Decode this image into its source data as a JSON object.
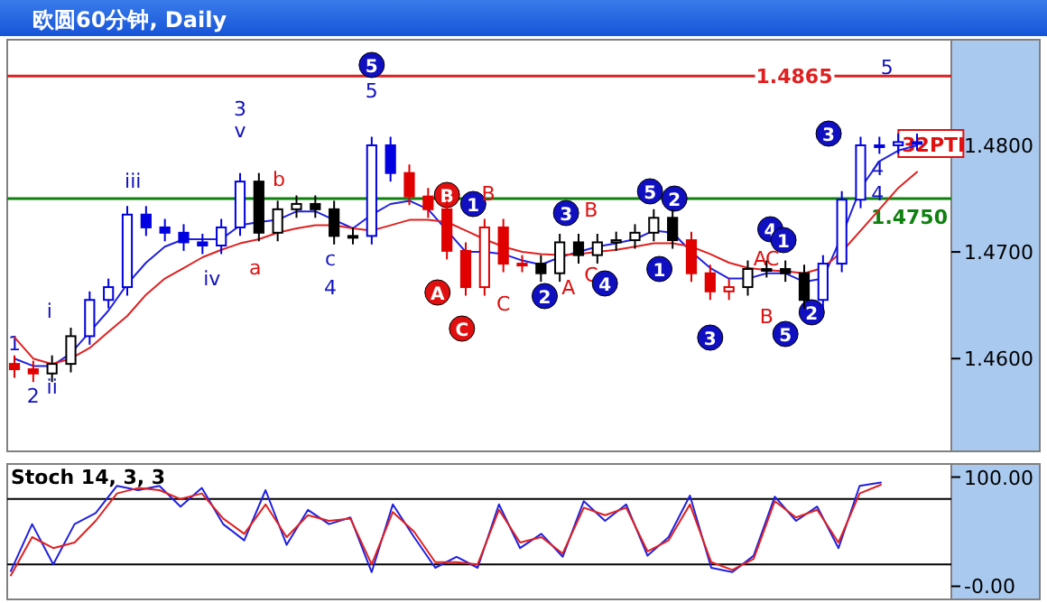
{
  "chart_data": [
    {
      "type": "candlestick",
      "title": "欧圆60分钟, Daily",
      "tick_labels": "y",
      "categories": [
        null,
        null,
        null,
        null,
        null,
        null,
        null,
        null,
        null,
        null,
        null,
        null,
        null,
        null,
        null,
        null,
        null,
        null,
        null,
        null,
        null,
        null,
        null,
        null,
        null,
        null,
        null,
        null,
        null,
        null,
        null,
        null,
        null,
        null,
        null,
        null,
        null,
        null,
        null,
        null,
        null,
        null,
        null,
        null,
        null,
        null,
        null,
        null,
        null
      ],
      "ohlc": [
        [
          1.4595,
          1.4603,
          1.4582,
          1.459
        ],
        [
          1.459,
          1.4598,
          1.4578,
          1.4586
        ],
        [
          1.4586,
          1.4603,
          1.4578,
          1.4595
        ],
        [
          1.4595,
          1.4629,
          1.4587,
          1.4621
        ],
        [
          1.4621,
          1.4663,
          1.4613,
          1.4655
        ],
        [
          1.4655,
          1.4675,
          1.4647,
          1.4667
        ],
        [
          1.4667,
          1.4743,
          1.4659,
          1.4735
        ],
        [
          1.4735,
          1.4743,
          1.4715,
          1.4723
        ],
        [
          1.4723,
          1.4731,
          1.471,
          1.4718
        ],
        [
          1.4718,
          1.4726,
          1.4701,
          1.4709
        ],
        [
          1.4709,
          1.4717,
          1.4698,
          1.4706
        ],
        [
          1.4706,
          1.4731,
          1.4698,
          1.4723
        ],
        [
          1.4723,
          1.4774,
          1.4715,
          1.4766
        ],
        [
          1.4766,
          1.4774,
          1.471,
          1.4718
        ],
        [
          1.4718,
          1.4748,
          1.471,
          1.474
        ],
        [
          1.474,
          1.4753,
          1.4732,
          1.4745
        ],
        [
          1.4745,
          1.4753,
          1.4732,
          1.474
        ],
        [
          1.474,
          1.4748,
          1.4707,
          1.4715
        ],
        [
          1.4715,
          1.4723,
          1.4707,
          1.4715
        ],
        [
          1.4715,
          1.4808,
          1.4707,
          1.48
        ],
        [
          1.48,
          1.4808,
          1.4766,
          1.4774
        ],
        [
          1.4774,
          1.4782,
          1.4744,
          1.4752
        ],
        [
          1.4752,
          1.476,
          1.4732,
          1.474
        ],
        [
          1.474,
          1.4748,
          1.4693,
          1.4701
        ],
        [
          1.4701,
          1.4709,
          1.4659,
          1.4667
        ],
        [
          1.4667,
          1.4731,
          1.4659,
          1.4723
        ],
        [
          1.4723,
          1.4731,
          1.4681,
          1.4689
        ],
        [
          1.4689,
          1.4697,
          1.4681,
          1.4689
        ],
        [
          1.4689,
          1.4697,
          1.4672,
          1.468
        ],
        [
          1.468,
          1.4717,
          1.4672,
          1.4709
        ],
        [
          1.4709,
          1.4717,
          1.4689,
          1.4697
        ],
        [
          1.4697,
          1.4717,
          1.4689,
          1.4709
        ],
        [
          1.4709,
          1.4719,
          1.4701,
          1.4711
        ],
        [
          1.4711,
          1.4726,
          1.4703,
          1.4718
        ],
        [
          1.4718,
          1.474,
          1.471,
          1.4732
        ],
        [
          1.4732,
          1.474,
          1.4703,
          1.4711
        ],
        [
          1.4711,
          1.4719,
          1.4672,
          1.468
        ],
        [
          1.468,
          1.4688,
          1.4655,
          1.4663
        ],
        [
          1.4663,
          1.4675,
          1.4655,
          1.4667
        ],
        [
          1.4667,
          1.4692,
          1.4659,
          1.4684
        ],
        [
          1.4684,
          1.4692,
          1.4676,
          1.4684
        ],
        [
          1.4684,
          1.4692,
          1.4672,
          1.468
        ],
        [
          1.468,
          1.4688,
          1.4647,
          1.4655
        ],
        [
          1.4655,
          1.4697,
          1.4647,
          1.4689
        ],
        [
          1.4689,
          1.4757,
          1.4681,
          1.4749
        ],
        [
          1.4749,
          1.4808,
          1.4741,
          1.48
        ],
        [
          1.48,
          1.4808,
          1.4792,
          1.48
        ],
        [
          1.48,
          1.4811,
          1.4792,
          1.4803
        ],
        [
          1.4803,
          1.4811,
          1.4795,
          1.4803
        ]
      ],
      "colors": [
        "#e00000",
        "#e00000",
        "#000000",
        "#000000",
        "#0000e0",
        "#0000e0",
        "#0000e0",
        "#0000e0",
        "#0000e0",
        "#0000e0",
        "#0000e0",
        "#0000e0",
        "#0000e0",
        "#000000",
        "#000000",
        "#000000",
        "#000000",
        "#000000",
        "#000000",
        "#0000e0",
        "#0000e0",
        "#e00000",
        "#e00000",
        "#e00000",
        "#e00000",
        "#e00000",
        "#e00000",
        "#e00000",
        "#000000",
        "#000000",
        "#000000",
        "#000000",
        "#000000",
        "#000000",
        "#000000",
        "#000000",
        "#e00000",
        "#e00000",
        "#e00000",
        "#000000",
        "#000000",
        "#000000",
        "#000000",
        "#0000e0",
        "#0000e0",
        "#0000e0",
        "#0000e0",
        "#0000e0",
        "#0000e0"
      ],
      "series": [
        {
          "type": "line",
          "color": "#2020e0",
          "values": [
            1.46,
            1.4593,
            1.4593,
            1.4605,
            1.4625,
            1.4645,
            1.467,
            1.469,
            1.4705,
            1.4712,
            1.4712,
            1.4712,
            1.4725,
            1.4728,
            1.473,
            1.4738,
            1.4738,
            1.473,
            1.4722,
            1.4735,
            1.4745,
            1.4748,
            1.474,
            1.472,
            1.47,
            1.47,
            1.4698,
            1.4692,
            1.4688,
            1.4695,
            1.47,
            1.4705,
            1.4708,
            1.4712,
            1.472,
            1.4718,
            1.47,
            1.4685,
            1.4675,
            1.4675,
            1.468,
            1.468,
            1.4672,
            1.4675,
            1.4715,
            1.476,
            1.4785,
            1.4795,
            1.48
          ]
        },
        {
          "type": "line",
          "color": "#e02020",
          "values": [
            1.462,
            1.46,
            1.4595,
            1.46,
            1.461,
            1.4625,
            1.464,
            1.466,
            1.4675,
            1.4685,
            1.4695,
            1.4702,
            1.4708,
            1.4712,
            1.4718,
            1.4722,
            1.4725,
            1.4725,
            1.4722,
            1.472,
            1.4725,
            1.473,
            1.473,
            1.4728,
            1.472,
            1.4712,
            1.4705,
            1.47,
            1.4698,
            1.4697,
            1.4698,
            1.47,
            1.4702,
            1.4705,
            1.4708,
            1.4708,
            1.4705,
            1.4698,
            1.469,
            1.4685,
            1.4683,
            1.4682,
            1.468,
            1.4685,
            1.47,
            1.472,
            1.474,
            1.476,
            1.4775
          ]
        }
      ],
      "ylim": [
        1.4513,
        1.4899
      ],
      "yticks": [
        {
          "value": 1.46,
          "label": "1.4600"
        },
        {
          "value": 1.47,
          "label": "1.4700"
        },
        {
          "value": 1.48,
          "label": "1.4800"
        }
      ],
      "ref_lines": [
        {
          "axis": "y",
          "value": 1.4865,
          "label": "1.4865",
          "color": "#e02020"
        },
        {
          "axis": "y",
          "value": 1.475,
          "label": "1.4750",
          "color": "#108010"
        }
      ],
      "annotations": [
        "1",
        "2",
        "i",
        "ii",
        "iii",
        "iv",
        "3",
        "v",
        "a",
        "b",
        "c",
        "4",
        "5",
        "5",
        "B",
        "A",
        "1",
        "B",
        "C",
        "C",
        "2",
        "3",
        "A",
        "B",
        "C",
        "4",
        "5",
        "2",
        "1",
        "3",
        "4",
        "A",
        "C",
        "B",
        "1",
        "2",
        "5",
        "3",
        "5",
        "4",
        "4",
        "32PTI"
      ]
    },
    {
      "type": "line",
      "title": "Stoch 14, 3, 3",
      "tick_labels": "y",
      "categories": [
        null,
        null,
        null,
        null,
        null,
        null,
        null,
        null,
        null,
        null,
        null,
        null,
        null,
        null,
        null,
        null,
        null,
        null,
        null,
        null,
        null,
        null,
        null,
        null,
        null,
        null,
        null,
        null,
        null,
        null,
        null,
        null,
        null,
        null,
        null,
        null,
        null,
        null,
        null,
        null,
        null,
        null
      ],
      "series": [
        {
          "color": "#2020e0",
          "values": [
            14,
            57,
            20,
            57,
            67,
            92,
            88,
            92,
            73,
            90,
            57,
            42,
            88,
            38,
            70,
            57,
            63,
            13,
            75,
            45,
            17,
            27,
            17,
            75,
            35,
            48,
            27,
            78,
            60,
            75,
            28,
            45,
            83,
            17,
            13,
            28,
            82,
            60,
            73,
            35,
            92,
            95
          ]
        },
        {
          "color": "#e02020",
          "values": [
            10,
            45,
            35,
            40,
            60,
            85,
            90,
            88,
            80,
            85,
            62,
            48,
            75,
            45,
            65,
            60,
            62,
            20,
            68,
            50,
            22,
            22,
            20,
            70,
            40,
            45,
            30,
            72,
            65,
            72,
            32,
            42,
            75,
            22,
            15,
            25,
            78,
            63,
            70,
            40,
            85,
            93
          ]
        }
      ],
      "ylim": [
        -12,
        112
      ],
      "yticks": [
        {
          "value": 0,
          "label": "-0.00"
        },
        {
          "value": 100,
          "label": "100.00"
        }
      ],
      "ref_lines": [
        {
          "axis": "y",
          "value": 20,
          "color": "#000000"
        },
        {
          "axis": "y",
          "value": 80,
          "color": "#000000"
        }
      ]
    }
  ]
}
